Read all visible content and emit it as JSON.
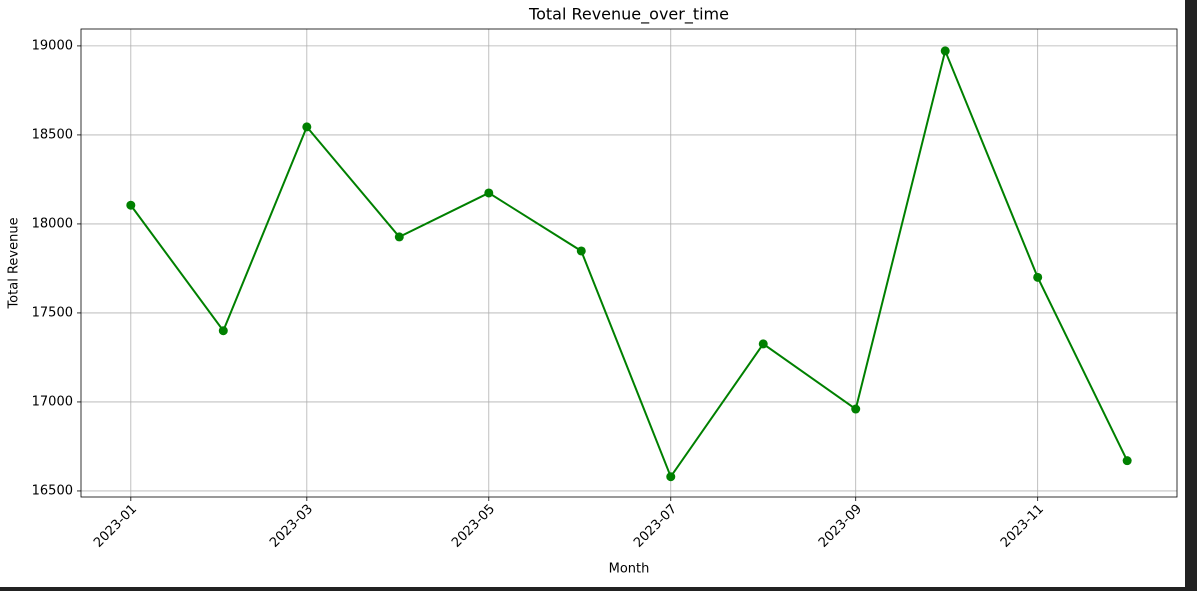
{
  "chart_data": {
    "type": "line",
    "title": "Total Revenue_over_time",
    "x_label": "Month",
    "y_label": "Total Revenue",
    "x": [
      "2023-01",
      "2023-02",
      "2023-03",
      "2023-04",
      "2023-05",
      "2023-06",
      "2023-07",
      "2023-08",
      "2023-09",
      "2023-10",
      "2023-11",
      "2023-12"
    ],
    "series": [
      {
        "name": "Total Revenue",
        "color": "#008000",
        "values": [
          18105,
          17400,
          18545,
          17927,
          18174,
          17848,
          16580,
          17326,
          16960,
          18972,
          17700,
          16670
        ]
      }
    ],
    "xticks": [
      "2023-01",
      "2023-03",
      "2023-05",
      "2023-07",
      "2023-09",
      "2023-11"
    ],
    "ylim": [
      16466,
      19095
    ],
    "yticks": [
      16500,
      17000,
      17500,
      18000,
      18500,
      19000
    ],
    "grid": true
  }
}
